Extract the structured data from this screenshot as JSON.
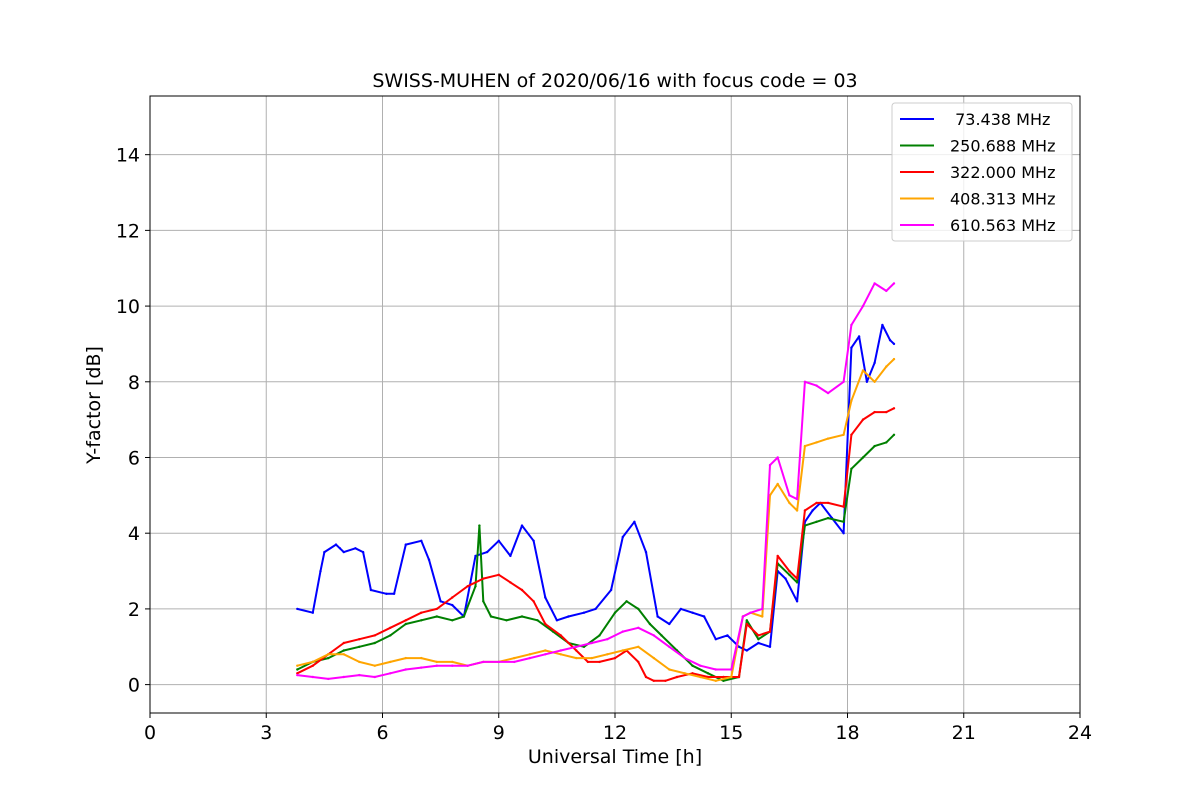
{
  "chart_data": {
    "type": "line",
    "title": "SWISS-MUHEN of 2020/06/16 with focus code = 03",
    "xlabel": "Universal Time [h]",
    "ylabel": "Y-factor [dB]",
    "xlim": [
      0,
      24
    ],
    "ylim": [
      -0.75,
      15.55
    ],
    "xticks": [
      0,
      3,
      6,
      9,
      12,
      15,
      18,
      21,
      24
    ],
    "yticks": [
      0,
      2,
      4,
      6,
      8,
      10,
      12,
      14
    ],
    "grid": true,
    "legend_position": "top-right",
    "series": [
      {
        "name": " 73.438 MHz",
        "color": "#0000ff",
        "x": [
          3.8,
          4.2,
          4.4,
          4.5,
          4.8,
          4.9,
          5.0,
          5.3,
          5.5,
          5.7,
          6.1,
          6.3,
          6.6,
          7.0,
          7.2,
          7.5,
          7.8,
          8.1,
          8.4,
          8.7,
          9.0,
          9.3,
          9.6,
          9.9,
          10.2,
          10.5,
          10.8,
          11.2,
          11.5,
          11.9,
          12.2,
          12.5,
          12.8,
          13.1,
          13.4,
          13.7,
          14.0,
          14.3,
          14.6,
          14.9,
          15.2,
          15.4,
          15.7,
          16.0,
          16.2,
          16.4,
          16.7,
          16.9,
          17.1,
          17.3,
          17.6,
          17.9,
          18.1,
          18.3,
          18.5,
          18.7,
          18.9,
          19.1,
          19.2
        ],
        "y": [
          2.0,
          1.9,
          3.0,
          3.5,
          3.7,
          3.6,
          3.5,
          3.6,
          3.5,
          2.5,
          2.4,
          2.4,
          3.7,
          3.8,
          3.3,
          2.2,
          2.1,
          1.8,
          3.4,
          3.5,
          3.8,
          3.4,
          4.2,
          3.8,
          2.3,
          1.7,
          1.8,
          1.9,
          2.0,
          2.5,
          3.9,
          4.3,
          3.5,
          1.8,
          1.6,
          2.0,
          1.9,
          1.8,
          1.2,
          1.3,
          1.0,
          0.9,
          1.1,
          1.0,
          3.0,
          2.8,
          2.2,
          4.3,
          4.6,
          4.8,
          4.4,
          4.0,
          8.9,
          9.2,
          8.0,
          8.5,
          9.5,
          9.1,
          9.0
        ]
      },
      {
        "name": "250.688 MHz",
        "color": "#008000",
        "x": [
          3.8,
          4.2,
          4.6,
          5.0,
          5.4,
          5.8,
          6.2,
          6.6,
          7.0,
          7.4,
          7.8,
          8.1,
          8.4,
          8.5,
          8.6,
          8.8,
          9.2,
          9.6,
          10.0,
          10.4,
          10.8,
          11.2,
          11.6,
          12.0,
          12.3,
          12.6,
          12.9,
          13.2,
          13.6,
          14.0,
          14.4,
          14.8,
          15.2,
          15.4,
          15.7,
          16.0,
          16.2,
          16.5,
          16.7,
          16.9,
          17.2,
          17.5,
          17.9,
          18.1,
          18.4,
          18.7,
          19.0,
          19.2
        ],
        "y": [
          0.4,
          0.6,
          0.7,
          0.9,
          1.0,
          1.1,
          1.3,
          1.6,
          1.7,
          1.8,
          1.7,
          1.8,
          2.6,
          4.2,
          2.2,
          1.8,
          1.7,
          1.8,
          1.7,
          1.4,
          1.1,
          1.0,
          1.3,
          1.9,
          2.2,
          2.0,
          1.6,
          1.3,
          0.9,
          0.5,
          0.3,
          0.1,
          0.2,
          1.7,
          1.2,
          1.4,
          3.2,
          2.9,
          2.7,
          4.2,
          4.3,
          4.4,
          4.3,
          5.7,
          6.0,
          6.3,
          6.4,
          6.6
        ]
      },
      {
        "name": "322.000 MHz",
        "color": "#ff0000",
        "x": [
          3.8,
          4.2,
          4.6,
          5.0,
          5.4,
          5.8,
          6.2,
          6.6,
          7.0,
          7.4,
          7.8,
          8.2,
          8.6,
          9.0,
          9.3,
          9.6,
          9.9,
          10.2,
          10.6,
          11.0,
          11.3,
          11.6,
          12.0,
          12.3,
          12.6,
          12.8,
          13.0,
          13.3,
          13.6,
          14.0,
          14.4,
          14.8,
          15.2,
          15.4,
          15.7,
          16.0,
          16.2,
          16.5,
          16.7,
          16.9,
          17.2,
          17.5,
          17.9,
          18.1,
          18.4,
          18.7,
          19.0,
          19.2
        ],
        "y": [
          0.3,
          0.5,
          0.8,
          1.1,
          1.2,
          1.3,
          1.5,
          1.7,
          1.9,
          2.0,
          2.3,
          2.6,
          2.8,
          2.9,
          2.7,
          2.5,
          2.2,
          1.6,
          1.3,
          0.9,
          0.6,
          0.6,
          0.7,
          0.9,
          0.6,
          0.2,
          0.1,
          0.1,
          0.2,
          0.3,
          0.2,
          0.2,
          0.2,
          1.6,
          1.3,
          1.4,
          3.4,
          3.0,
          2.8,
          4.6,
          4.8,
          4.8,
          4.7,
          6.6,
          7.0,
          7.2,
          7.2,
          7.3
        ]
      },
      {
        "name": "408.313 MHz",
        "color": "#ffa500",
        "x": [
          3.8,
          4.2,
          4.6,
          5.0,
          5.4,
          5.8,
          6.2,
          6.6,
          7.0,
          7.4,
          7.8,
          8.2,
          8.6,
          9.0,
          9.4,
          9.8,
          10.2,
          10.6,
          11.0,
          11.4,
          11.8,
          12.2,
          12.6,
          13.0,
          13.4,
          13.8,
          14.2,
          14.6,
          15.0,
          15.3,
          15.5,
          15.8,
          16.0,
          16.2,
          16.5,
          16.7,
          16.9,
          17.2,
          17.5,
          17.9,
          18.1,
          18.4,
          18.7,
          19.0,
          19.2
        ],
        "y": [
          0.5,
          0.6,
          0.8,
          0.8,
          0.6,
          0.5,
          0.6,
          0.7,
          0.7,
          0.6,
          0.6,
          0.5,
          0.6,
          0.6,
          0.7,
          0.8,
          0.9,
          0.8,
          0.7,
          0.7,
          0.8,
          0.9,
          1.0,
          0.7,
          0.4,
          0.3,
          0.2,
          0.1,
          0.2,
          1.8,
          1.9,
          1.8,
          5.0,
          5.3,
          4.8,
          4.6,
          6.3,
          6.4,
          6.5,
          6.6,
          7.5,
          8.3,
          8.0,
          8.4,
          8.6
        ]
      },
      {
        "name": "610.563 MHz",
        "color": "#ff00ff",
        "x": [
          3.8,
          4.2,
          4.6,
          5.0,
          5.4,
          5.8,
          6.2,
          6.6,
          7.0,
          7.4,
          7.8,
          8.2,
          8.6,
          9.0,
          9.4,
          9.8,
          10.2,
          10.6,
          11.0,
          11.4,
          11.8,
          12.2,
          12.6,
          13.0,
          13.4,
          13.8,
          14.2,
          14.6,
          15.0,
          15.3,
          15.5,
          15.8,
          16.0,
          16.2,
          16.5,
          16.7,
          16.9,
          17.2,
          17.5,
          17.9,
          18.1,
          18.4,
          18.7,
          19.0,
          19.2
        ],
        "y": [
          0.25,
          0.2,
          0.15,
          0.2,
          0.25,
          0.2,
          0.3,
          0.4,
          0.45,
          0.5,
          0.5,
          0.5,
          0.6,
          0.6,
          0.6,
          0.7,
          0.8,
          0.9,
          1.0,
          1.1,
          1.2,
          1.4,
          1.5,
          1.3,
          1.0,
          0.7,
          0.5,
          0.4,
          0.4,
          1.8,
          1.9,
          2.0,
          5.8,
          6.0,
          5.0,
          4.9,
          8.0,
          7.9,
          7.7,
          8.0,
          9.5,
          10.0,
          10.6,
          10.4,
          10.6
        ]
      }
    ]
  }
}
